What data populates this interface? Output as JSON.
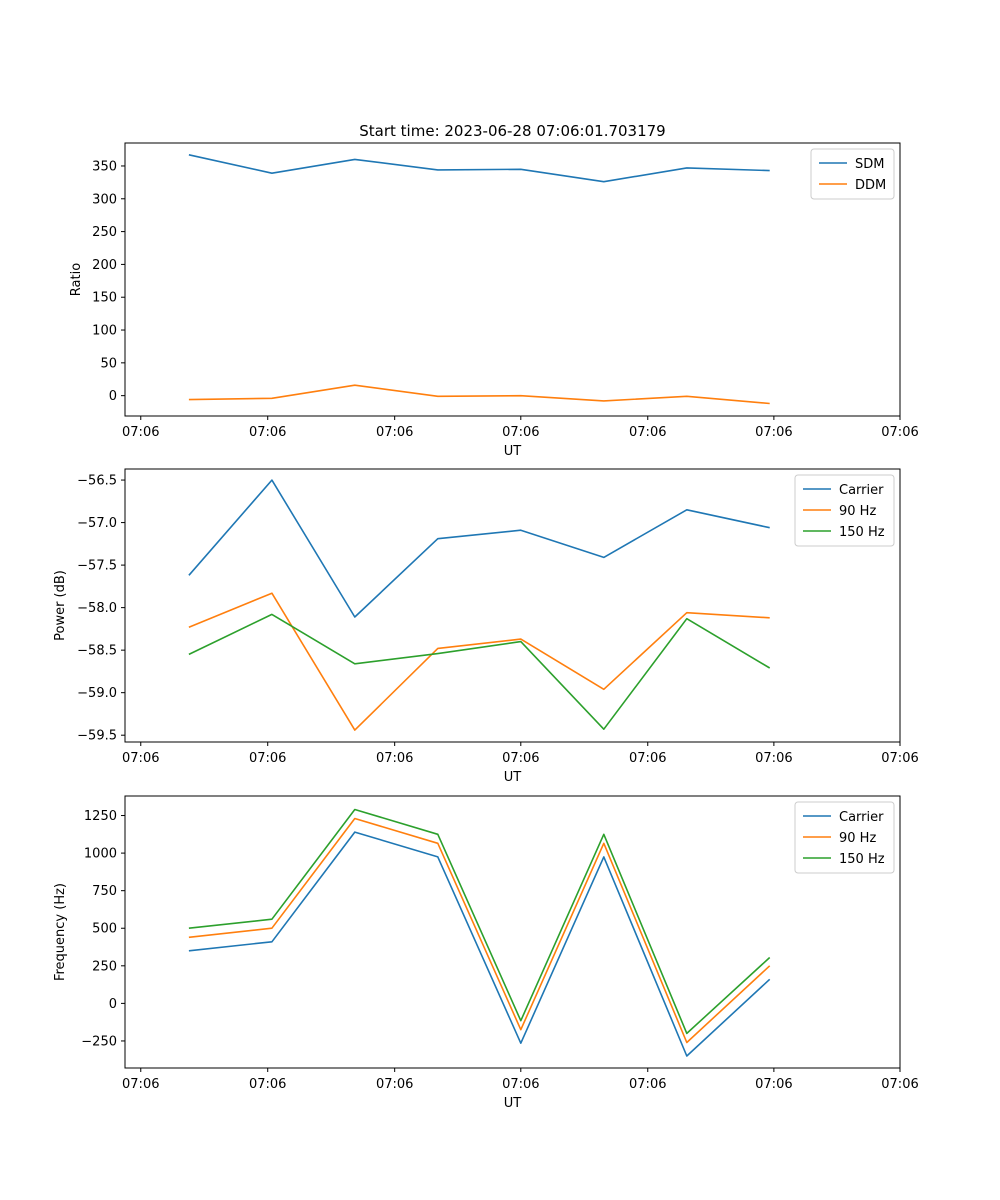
{
  "figure": {
    "title": "Start time: 2023-06-28 07:06:01.703179"
  },
  "chart_data": [
    {
      "type": "line",
      "title": "Start time: 2023-06-28 07:06:01.703179",
      "xlabel": "UT",
      "ylabel": "Ratio",
      "x_tick_labels": [
        "07:06",
        "07:06",
        "07:06",
        "07:06",
        "07:06",
        "07:06",
        "07:06"
      ],
      "y_ticks": [
        0,
        50,
        100,
        150,
        200,
        250,
        300,
        350
      ],
      "ylim": [
        -31,
        385
      ],
      "legend_position": "top-right",
      "grid": false,
      "x": [
        1,
        2,
        3,
        4,
        5,
        6,
        7,
        8
      ],
      "series": [
        {
          "name": "SDM",
          "color": "#1f77b4",
          "values": [
            367,
            339,
            360,
            344,
            345,
            326,
            347,
            343
          ]
        },
        {
          "name": "DDM",
          "color": "#ff7f0e",
          "values": [
            -6,
            -4,
            16,
            -1,
            0,
            -8,
            -1,
            -12
          ]
        }
      ]
    },
    {
      "type": "line",
      "title": "",
      "xlabel": "UT",
      "ylabel": "Power (dB)",
      "x_tick_labels": [
        "07:06",
        "07:06",
        "07:06",
        "07:06",
        "07:06",
        "07:06",
        "07:06"
      ],
      "y_ticks": [
        -59.5,
        -59.0,
        -58.5,
        -58.0,
        -57.5,
        -57.0,
        -56.5
      ],
      "y_tick_labels": [
        "−59.5",
        "−59.0",
        "−58.5",
        "−58.0",
        "−57.5",
        "−57.0",
        "−56.5"
      ],
      "ylim": [
        -59.58,
        -56.37
      ],
      "legend_position": "top-right",
      "grid": false,
      "x": [
        1,
        2,
        3,
        4,
        5,
        6,
        7,
        8
      ],
      "series": [
        {
          "name": "Carrier",
          "color": "#1f77b4",
          "values": [
            -57.62,
            -56.5,
            -58.11,
            -57.19,
            -57.09,
            -57.41,
            -56.85,
            -57.06
          ]
        },
        {
          "name": "90 Hz",
          "color": "#ff7f0e",
          "values": [
            -58.23,
            -57.83,
            -59.44,
            -58.48,
            -58.37,
            -58.96,
            -58.06,
            -58.12
          ]
        },
        {
          "name": "150 Hz",
          "color": "#2ca02c",
          "values": [
            -58.55,
            -58.08,
            -58.66,
            -58.54,
            -58.4,
            -59.43,
            -58.13,
            -58.71
          ]
        }
      ]
    },
    {
      "type": "line",
      "title": "",
      "xlabel": "UT",
      "ylabel": "Frequency (Hz)",
      "x_tick_labels": [
        "07:06",
        "07:06",
        "07:06",
        "07:06",
        "07:06",
        "07:06",
        "07:06"
      ],
      "y_ticks": [
        -250,
        0,
        250,
        500,
        750,
        1000,
        1250
      ],
      "y_tick_labels": [
        "−250",
        "0",
        "250",
        "500",
        "750",
        "1000",
        "1250"
      ],
      "ylim": [
        -430,
        1380
      ],
      "legend_position": "top-right",
      "grid": false,
      "x": [
        1,
        2,
        3,
        4,
        5,
        6,
        7,
        8
      ],
      "series": [
        {
          "name": "Carrier",
          "color": "#1f77b4",
          "values": [
            350,
            410,
            1140,
            975,
            -265,
            975,
            -350,
            160
          ]
        },
        {
          "name": "90 Hz",
          "color": "#ff7f0e",
          "values": [
            440,
            500,
            1230,
            1065,
            -175,
            1065,
            -260,
            250
          ]
        },
        {
          "name": "150 Hz",
          "color": "#2ca02c",
          "values": [
            500,
            560,
            1290,
            1125,
            -115,
            1125,
            -200,
            305
          ]
        }
      ]
    }
  ]
}
